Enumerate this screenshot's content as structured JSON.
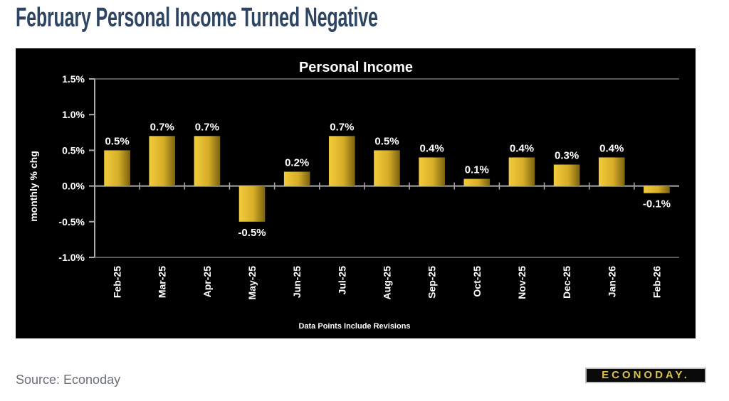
{
  "headline": "February Personal Income Turned Negative",
  "source": "Source: Econoday",
  "logo_text": "ECONODAY.",
  "colors": {
    "bar_light": "#f2cc3c",
    "bar_dark": "#7a6210",
    "background": "#000000",
    "headline": "#2d4462"
  },
  "chart_data": {
    "type": "bar",
    "title": "Personal Income",
    "ylabel": "monthly % chg",
    "xlabel": "Data Points Include Revisions",
    "categories": [
      "Feb-25",
      "Mar-25",
      "Apr-25",
      "May-25",
      "Jun-25",
      "Jul-25",
      "Aug-25",
      "Sep-25",
      "Oct-25",
      "Nov-25",
      "Dec-25",
      "Jan-26",
      "Feb-26"
    ],
    "values": [
      0.5,
      0.7,
      0.7,
      -0.5,
      0.2,
      0.7,
      0.5,
      0.4,
      0.1,
      0.4,
      0.3,
      0.4,
      -0.1
    ],
    "data_labels": [
      "0.5%",
      "0.7%",
      "0.7%",
      "-0.5%",
      "0.2%",
      "0.7%",
      "0.5%",
      "0.4%",
      "0.1%",
      "0.4%",
      "0.3%",
      "0.4%",
      "-0.1%"
    ],
    "ylim": [
      -1.0,
      1.5
    ],
    "yticks": [
      1.5,
      1.0,
      0.5,
      0.0,
      -0.5,
      -1.0
    ],
    "ytick_labels": [
      "1.5%",
      "1.0%",
      "0.5%",
      "0.0%",
      "-0.5%",
      "-1.0%"
    ],
    "grid": false,
    "legend": "none"
  }
}
